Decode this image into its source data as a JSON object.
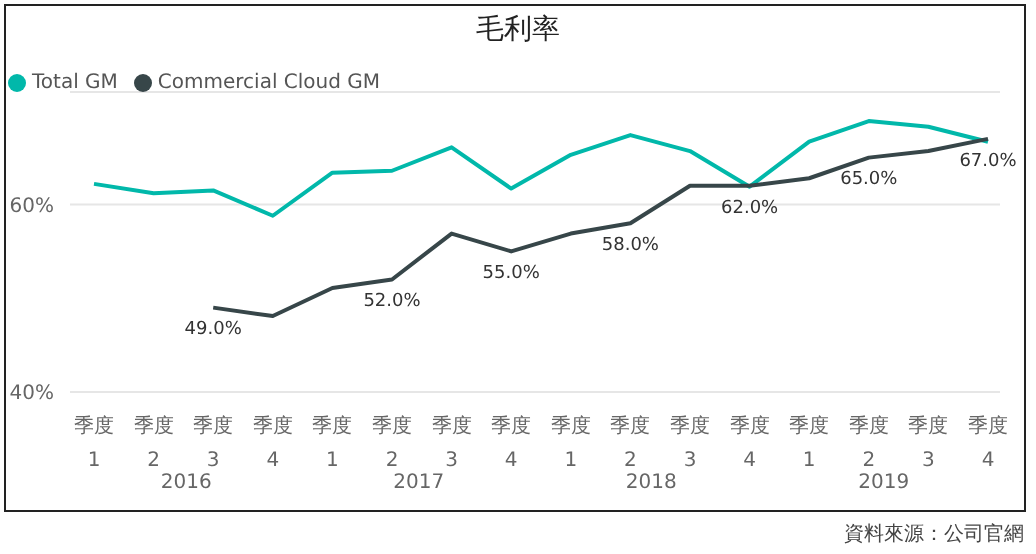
{
  "chart_data": {
    "type": "line",
    "title": "毛利率",
    "categories": [
      "季度 1",
      "季度 2",
      "季度 3",
      "季度 4",
      "季度 1",
      "季度 2",
      "季度 3",
      "季度 4",
      "季度 1",
      "季度 2",
      "季度 3",
      "季度 4",
      "季度 1",
      "季度 2",
      "季度 3",
      "季度 4"
    ],
    "series": [
      {
        "name": "Total GM",
        "color": "#01b8aa",
        "values": [
          62.2,
          61.2,
          61.5,
          58.8,
          63.4,
          63.6,
          66.1,
          61.7,
          65.3,
          67.4,
          65.7,
          61.9,
          66.7,
          68.9,
          68.3,
          66.7
        ]
      },
      {
        "name": "Commercial Cloud  GM",
        "color": "#374649",
        "values": [
          null,
          null,
          49.0,
          48.1,
          51.1,
          52.0,
          56.9,
          55.0,
          56.9,
          58.0,
          62.0,
          62.0,
          62.8,
          65.0,
          65.7,
          67.0
        ],
        "value_labels": [
          null,
          null,
          "49.0%",
          null,
          null,
          "52.0%",
          null,
          "55.0%",
          null,
          "58.0%",
          null,
          "62.0%",
          null,
          "65.0%",
          null,
          "67.0%"
        ]
      }
    ],
    "ylim": [
      40,
      72
    ],
    "yticks": [
      {
        "value": 40,
        "label": "40%"
      },
      {
        "value": 60,
        "label": "60%"
      }
    ],
    "grid": "y",
    "legend": "top left",
    "marker": "none",
    "line_style": "solid",
    "annotations": [
      "2016",
      "2017",
      "2018",
      "2019",
      "資料來源：公司官網"
    ]
  }
}
